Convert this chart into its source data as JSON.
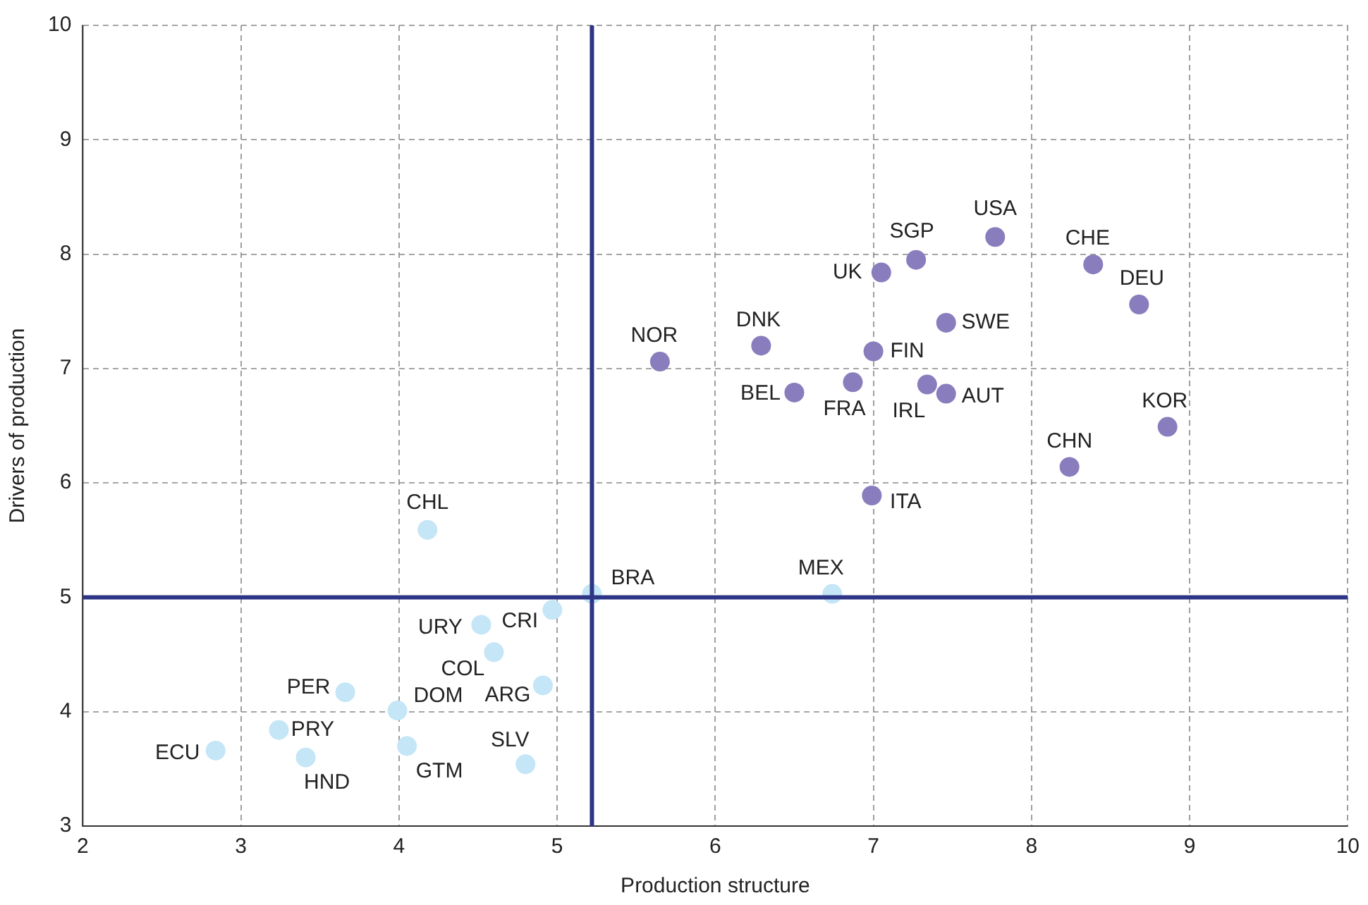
{
  "chart_data": {
    "type": "scatter",
    "xlabel": "Production structure",
    "ylabel": "Drivers of production",
    "xlim": [
      2,
      10
    ],
    "xticks": [
      2,
      3,
      4,
      5,
      6,
      7,
      8,
      9,
      10
    ],
    "ylim": [
      3,
      10
    ],
    "yticks": [
      3,
      4,
      5,
      6,
      7,
      8,
      9,
      10
    ],
    "grid": true,
    "legend": false,
    "marker": "circle",
    "series": [
      {
        "color": "#8a7dbd",
        "x": [
          7.77,
          7.27,
          8.39,
          7.05,
          8.68,
          7.46,
          6.29,
          7.0,
          5.65,
          6.5,
          6.87,
          7.34,
          7.46,
          8.86,
          8.24,
          6.99
        ],
        "values": [
          8.15,
          7.95,
          7.91,
          7.84,
          7.56,
          7.4,
          7.2,
          7.15,
          7.06,
          6.79,
          6.88,
          6.86,
          6.78,
          6.49,
          6.14,
          5.89
        ]
      },
      {
        "color": "#c4e6f7",
        "x": [
          4.18,
          5.22,
          6.74,
          4.97,
          4.52,
          4.6,
          4.91,
          3.66,
          3.99,
          3.24,
          2.84,
          3.41,
          4.05,
          4.8
        ],
        "values": [
          5.59,
          5.03,
          5.03,
          4.89,
          4.76,
          4.52,
          4.23,
          4.17,
          4.01,
          3.84,
          3.66,
          3.6,
          3.7,
          3.54
        ]
      }
    ],
    "ref_lines": [
      {
        "axis": "x",
        "value": 5.22,
        "color": "#2e3586"
      },
      {
        "axis": "y",
        "value": 5,
        "color": "#2e3586"
      }
    ],
    "annotations": [
      {
        "text": "USA",
        "x": 7.77,
        "y": 8.15
      },
      {
        "text": "SGP",
        "x": 7.27,
        "y": 7.95
      },
      {
        "text": "CHE",
        "x": 8.39,
        "y": 7.91
      },
      {
        "text": "UK",
        "x": 7.05,
        "y": 7.84
      },
      {
        "text": "DEU",
        "x": 8.68,
        "y": 7.56
      },
      {
        "text": "SWE",
        "x": 7.46,
        "y": 7.4
      },
      {
        "text": "DNK",
        "x": 6.29,
        "y": 7.2
      },
      {
        "text": "FIN",
        "x": 7.0,
        "y": 7.15
      },
      {
        "text": "NOR",
        "x": 5.65,
        "y": 7.06
      },
      {
        "text": "BEL",
        "x": 6.5,
        "y": 6.79
      },
      {
        "text": "FRA",
        "x": 6.87,
        "y": 6.88
      },
      {
        "text": "IRL",
        "x": 7.34,
        "y": 6.86
      },
      {
        "text": "AUT",
        "x": 7.46,
        "y": 6.78
      },
      {
        "text": "KOR",
        "x": 8.86,
        "y": 6.49
      },
      {
        "text": "CHN",
        "x": 8.24,
        "y": 6.14
      },
      {
        "text": "ITA",
        "x": 6.99,
        "y": 5.89
      },
      {
        "text": "CHL",
        "x": 4.18,
        "y": 5.59
      },
      {
        "text": "BRA",
        "x": 5.22,
        "y": 5.03
      },
      {
        "text": "MEX",
        "x": 6.74,
        "y": 5.03
      },
      {
        "text": "CRI",
        "x": 4.97,
        "y": 4.89
      },
      {
        "text": "URY",
        "x": 4.52,
        "y": 4.76
      },
      {
        "text": "COL",
        "x": 4.6,
        "y": 4.52
      },
      {
        "text": "ARG",
        "x": 4.91,
        "y": 4.23
      },
      {
        "text": "PER",
        "x": 3.66,
        "y": 4.17
      },
      {
        "text": "DOM",
        "x": 3.99,
        "y": 4.01
      },
      {
        "text": "PRY",
        "x": 3.24,
        "y": 3.84
      },
      {
        "text": "ECU",
        "x": 2.84,
        "y": 3.66
      },
      {
        "text": "HND",
        "x": 3.41,
        "y": 3.6
      },
      {
        "text": "GTM",
        "x": 4.05,
        "y": 3.7
      },
      {
        "text": "SLV",
        "x": 4.8,
        "y": 3.54
      }
    ]
  }
}
